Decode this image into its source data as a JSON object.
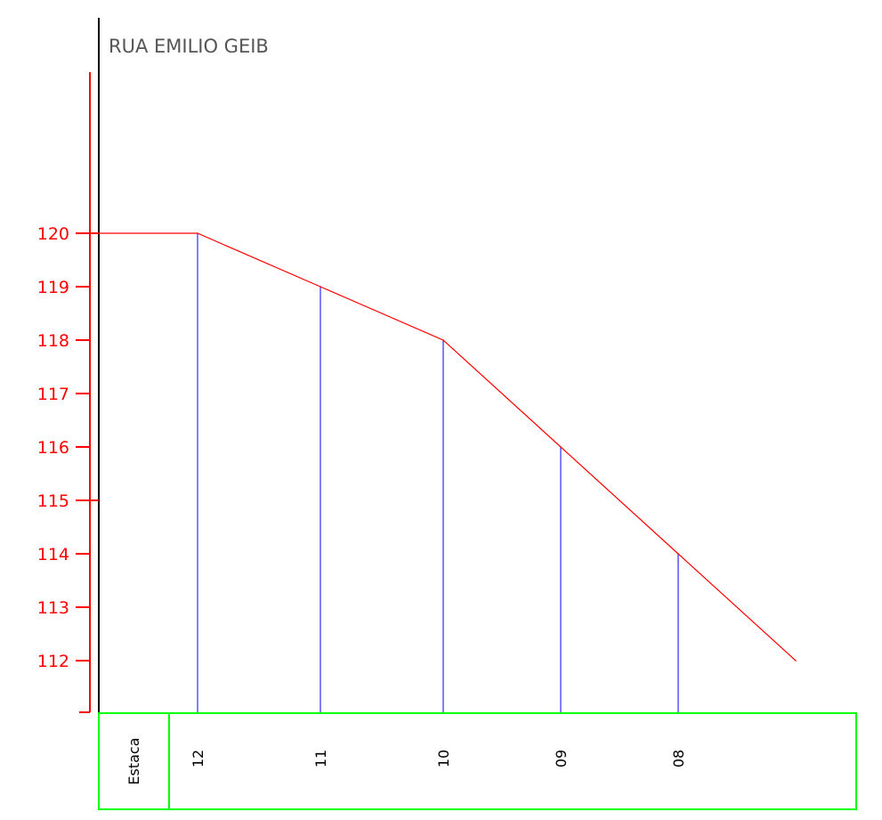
{
  "chart_data": {
    "type": "line",
    "title": "RUA EMILIO GEIB",
    "x_header": "Estaca",
    "ylim": [
      111,
      120
    ],
    "y_ticks": [
      "120",
      "119",
      "118",
      "117",
      "116",
      "115",
      "114",
      "113",
      "112"
    ],
    "stations": [
      "12",
      "11",
      "10",
      "09",
      "08"
    ],
    "series": [
      {
        "values": [
          120,
          120,
          119,
          118,
          116,
          114,
          112
        ]
      }
    ],
    "colors": {
      "profile_line": "#ff0000",
      "axis": "#ff0000",
      "station_lines": "#0000ff",
      "table_border": "#00ff00",
      "frame": "#000000"
    }
  }
}
